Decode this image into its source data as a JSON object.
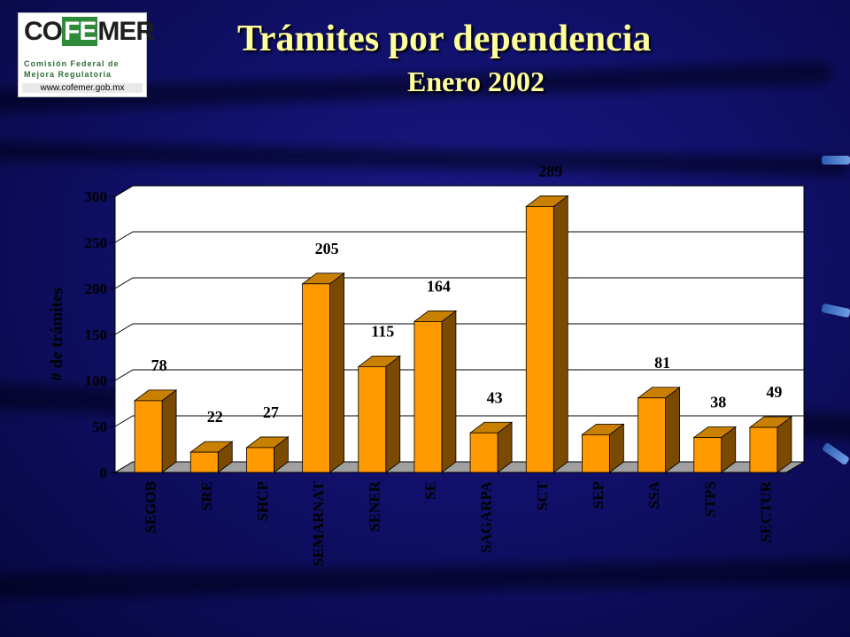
{
  "slide": {
    "title": "Trámites por dependencia",
    "subtitle": "Enero 2002"
  },
  "logo": {
    "brand_left": "CO",
    "brand_mid": "FE",
    "brand_right": "MER",
    "line1": "Comisión Federal de",
    "line2": "Mejora Regulatoria",
    "url": "www.cofemer.gob.mx"
  },
  "colors": {
    "bar_front": "#ff9900",
    "bar_top": "#c98000",
    "bar_side": "#7a4a00",
    "plot_bg": "#ffffff",
    "floor": "#a0a0a0",
    "text": "#000000",
    "title": "#ffff99"
  },
  "chart_data": {
    "type": "bar",
    "style": "3d",
    "ylabel": "# de trámites",
    "xlabel": "",
    "ylim": [
      0,
      300
    ],
    "yticks": [
      0,
      50,
      100,
      150,
      200,
      250,
      300
    ],
    "grid": true,
    "legend": "none",
    "categories": [
      "SEGOB",
      "SRE",
      "SHCP",
      "SEMARNAT",
      "SENER",
      "SE",
      "SAGARPA",
      "SCT",
      "SEP",
      "SSA",
      "STPS",
      "SECTUR"
    ],
    "values": [
      78,
      22,
      27,
      205,
      115,
      164,
      43,
      289,
      41,
      81,
      38,
      49
    ],
    "data_labels": [
      "78",
      "22",
      "27",
      "205",
      "115",
      "164",
      "43",
      "289",
      "",
      "81",
      "38",
      "49"
    ]
  }
}
